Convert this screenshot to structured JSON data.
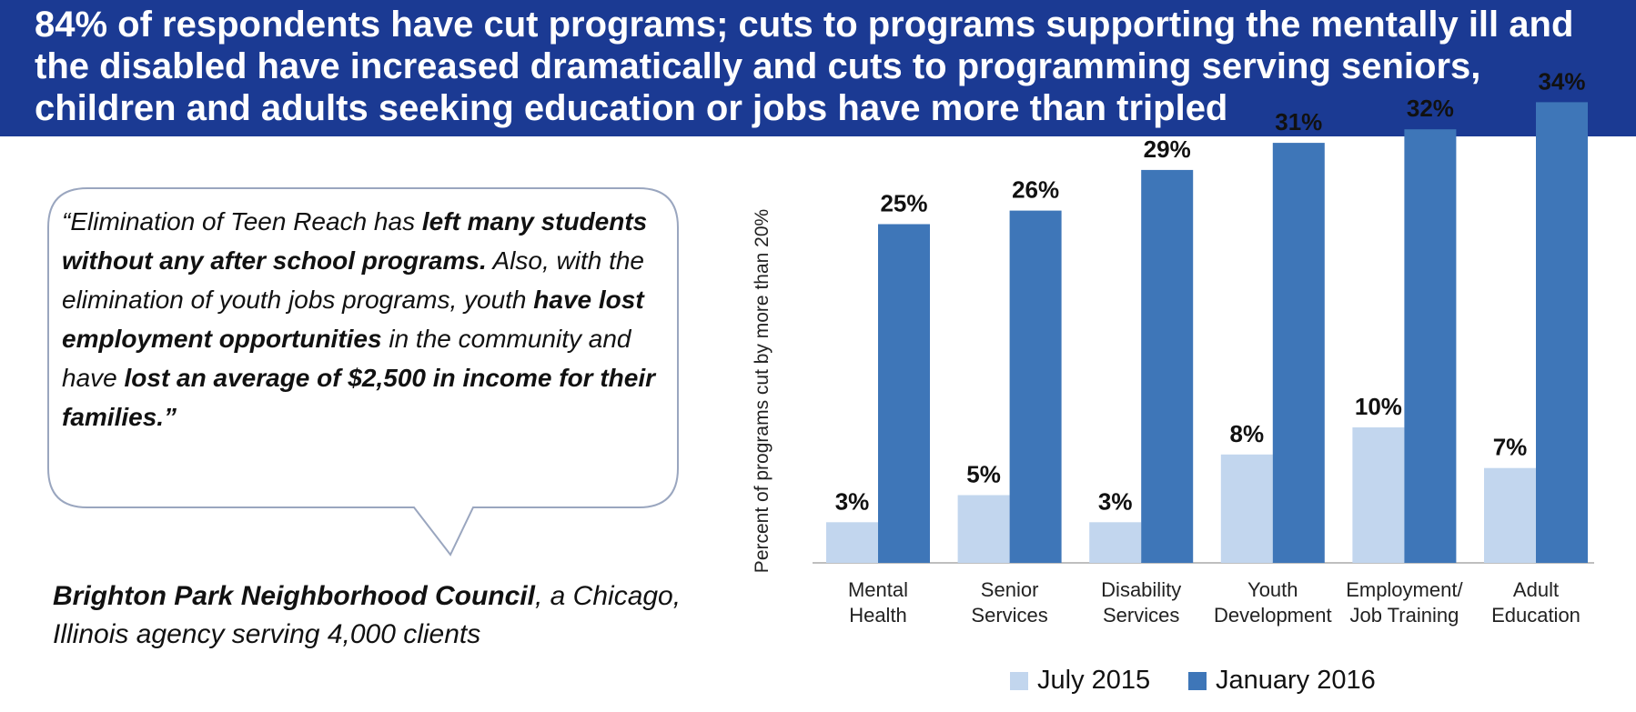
{
  "header": {
    "title": "84% of respondents have cut programs; cuts to programs supporting the mentally ill and the disabled have increased dramatically and cuts to programming serving seniors, children and adults seeking education or jobs have more than tripled"
  },
  "quote": {
    "segments": [
      {
        "text": "“Elimination of Teen Reach has ",
        "bold": false
      },
      {
        "text": "left many students without any after school programs.",
        "bold": true
      },
      {
        "text": "  Also, with the elimination of youth jobs programs, youth ",
        "bold": false
      },
      {
        "text": "have lost employment opportunities",
        "bold": true
      },
      {
        "text": " in the community and have ",
        "bold": false
      },
      {
        "text": "lost an average of $2,500 in income for their families.”",
        "bold": true
      }
    ]
  },
  "attribution": {
    "org": "Brighton Park Neighborhood Council",
    "rest": ", a Chicago, Illinois agency serving 4,000 clients"
  },
  "colors": {
    "header_bg": "#1b3a93",
    "july": "#c2d6ee",
    "january": "#3e76b8",
    "bubble_stroke": "#9aa6bf"
  },
  "chart_data": {
    "type": "bar",
    "ylabel": "Percent of programs cut by  more than 20%",
    "categories": [
      [
        "Mental",
        "Health"
      ],
      [
        "Senior",
        "Services"
      ],
      [
        "Disability",
        "Services"
      ],
      [
        "Youth",
        "Development"
      ],
      [
        "Employment/",
        "Job Training"
      ],
      [
        "Adult",
        "Education"
      ]
    ],
    "series": [
      {
        "name": "July 2015",
        "values": [
          3,
          5,
          3,
          8,
          10,
          7
        ],
        "color": "#c2d6ee"
      },
      {
        "name": "January 2016",
        "values": [
          25,
          26,
          29,
          31,
          32,
          34
        ],
        "color": "#3e76b8"
      }
    ],
    "value_suffix": "%",
    "ylim": [
      0,
      36
    ],
    "grid": false,
    "legend_position": "bottom"
  }
}
